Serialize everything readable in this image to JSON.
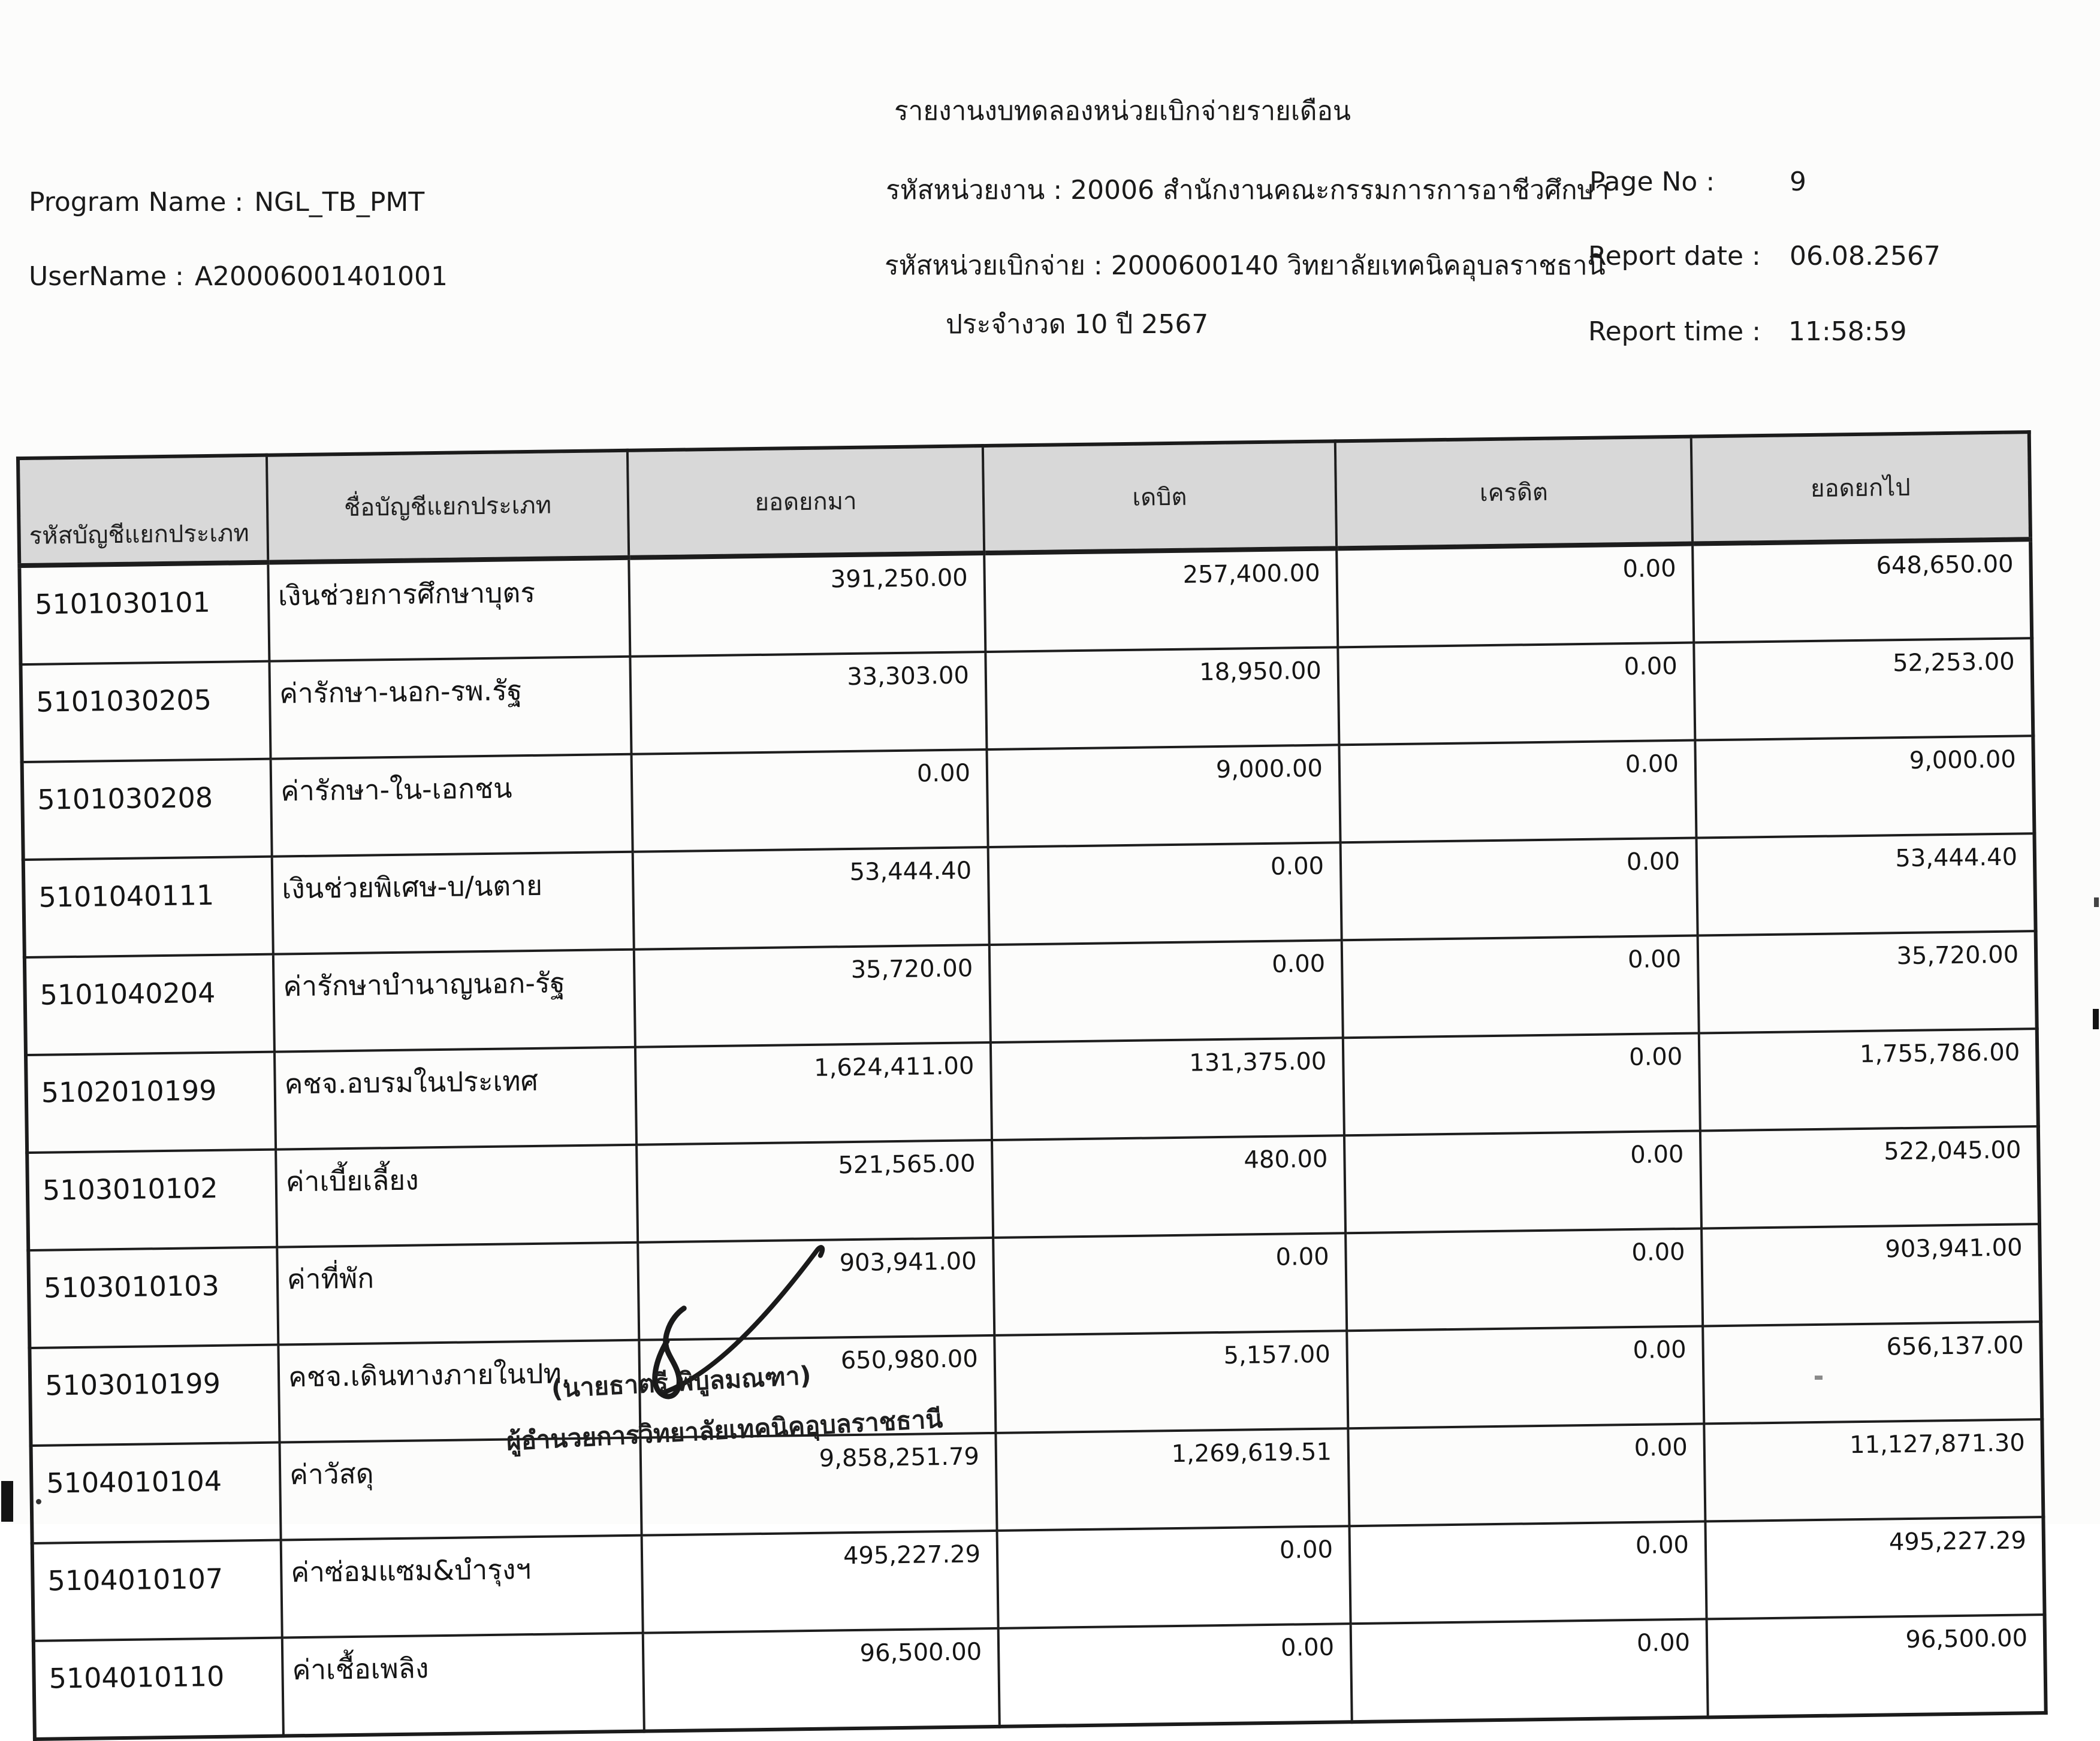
{
  "header": {
    "title": "รายงานงบทดลองหน่วยเบิกจ่ายรายเดือน",
    "program_name_label": "Program Name :",
    "program_name_value": "NGL_TB_PMT",
    "username_label": "UserName :",
    "username_value": "A20006001401001",
    "agency_line": "รหัสหน่วยงาน : 20006 สำนักงานคณะกรรมการการอาชีวศึกษา",
    "unit_line": "รหัสหน่วยเบิกจ่าย : 2000600140 วิทยาลัยเทคนิคอุบลราชธานี",
    "period_line": "ประจำงวด 10 ปี 2567",
    "page_no_label": "Page No :",
    "page_no_value": "9",
    "report_date_label": "Report date :",
    "report_date_value": "06.08.2567",
    "report_time_label": "Report time :",
    "report_time_value": "11:58:59"
  },
  "table": {
    "columns": [
      "รหัสบัญชีแยกประเภท",
      "ชื่อบัญชีแยกประเภท",
      "ยอดยกมา",
      "เดบิต",
      "เครดิต",
      "ยอดยกไป"
    ],
    "rows": [
      [
        "5101030101",
        "เงินช่วยการศึกษาบุตร",
        "391,250.00",
        "257,400.00",
        "0.00",
        "648,650.00"
      ],
      [
        "5101030205",
        "ค่ารักษา-นอก-รพ.รัฐ",
        "33,303.00",
        "18,950.00",
        "0.00",
        "52,253.00"
      ],
      [
        "5101030208",
        "ค่ารักษา-ใน-เอกชน",
        "0.00",
        "9,000.00",
        "0.00",
        "9,000.00"
      ],
      [
        "5101040111",
        "เงินช่วยพิเศษ-บ/นตาย",
        "53,444.40",
        "0.00",
        "0.00",
        "53,444.40"
      ],
      [
        "5101040204",
        "ค่ารักษาบำนาญนอก-รัฐ",
        "35,720.00",
        "0.00",
        "0.00",
        "35,720.00"
      ],
      [
        "5102010199",
        "คชจ.อบรมในประเทศ",
        "1,624,411.00",
        "131,375.00",
        "0.00",
        "1,755,786.00"
      ],
      [
        "5103010102",
        "ค่าเบี้ยเลี้ยง",
        "521,565.00",
        "480.00",
        "0.00",
        "522,045.00"
      ],
      [
        "5103010103",
        "ค่าที่พัก",
        "903,941.00",
        "0.00",
        "0.00",
        "903,941.00"
      ],
      [
        "5103010199",
        "คชจ.เดินทางภายในปท.",
        "650,980.00",
        "5,157.00",
        "0.00",
        "656,137.00"
      ],
      [
        "5104010104",
        "ค่าวัสดุ",
        "9,858,251.79",
        "1,269,619.51",
        "0.00",
        "11,127,871.30"
      ],
      [
        "5104010107",
        "ค่าซ่อมแซม&บำรุงฯ",
        "495,227.29",
        "0.00",
        "0.00",
        "495,227.29"
      ],
      [
        "5104010110",
        "ค่าเชื้อเพลิง",
        "96,500.00",
        "0.00",
        "0.00",
        "96,500.00"
      ]
    ]
  },
  "signature": {
    "name_line": "(นายธาตรี พิบูลมณฑา)",
    "title_line": "ผู้อำนวยการวิทยาลัยเทคนิคอุบลราชธานี"
  }
}
